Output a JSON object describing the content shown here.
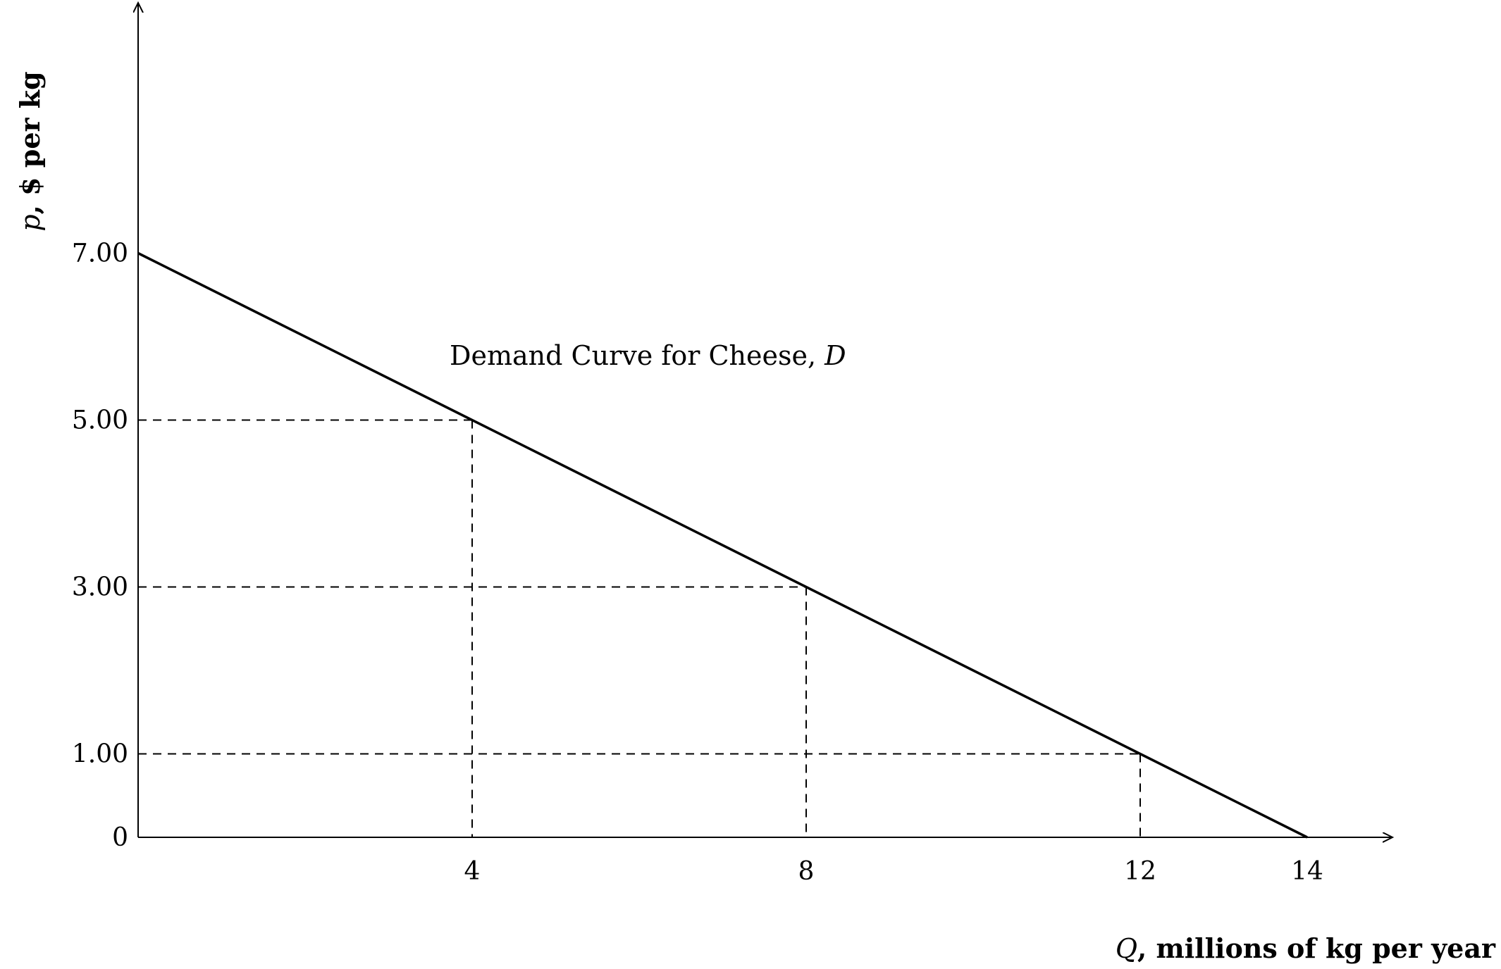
{
  "chart_data": {
    "type": "line",
    "x_axis": {
      "label_var": "Q",
      "label_rest": ", millions of kg per year",
      "ticks": [
        4,
        8,
        12,
        14
      ],
      "tick_labels": [
        "4",
        "8",
        "12",
        "14"
      ],
      "range": [
        0,
        15
      ]
    },
    "y_axis": {
      "label_var": "p",
      "label_rest": ", $ per kg",
      "ticks": [
        0,
        1,
        3,
        5,
        7
      ],
      "tick_labels": [
        "0",
        "1.00",
        "3.00",
        "5.00",
        "7.00"
      ],
      "range": [
        0,
        10
      ]
    },
    "series": [
      {
        "label_text": "Demand Curve for Cheese, ",
        "label_var": "D",
        "points": [
          [
            0,
            7
          ],
          [
            14,
            0
          ]
        ],
        "color": "#000000"
      }
    ],
    "reference_points": [
      {
        "x": 4,
        "y": 5
      },
      {
        "x": 8,
        "y": 3
      },
      {
        "x": 12,
        "y": 1
      }
    ],
    "grid": false
  }
}
